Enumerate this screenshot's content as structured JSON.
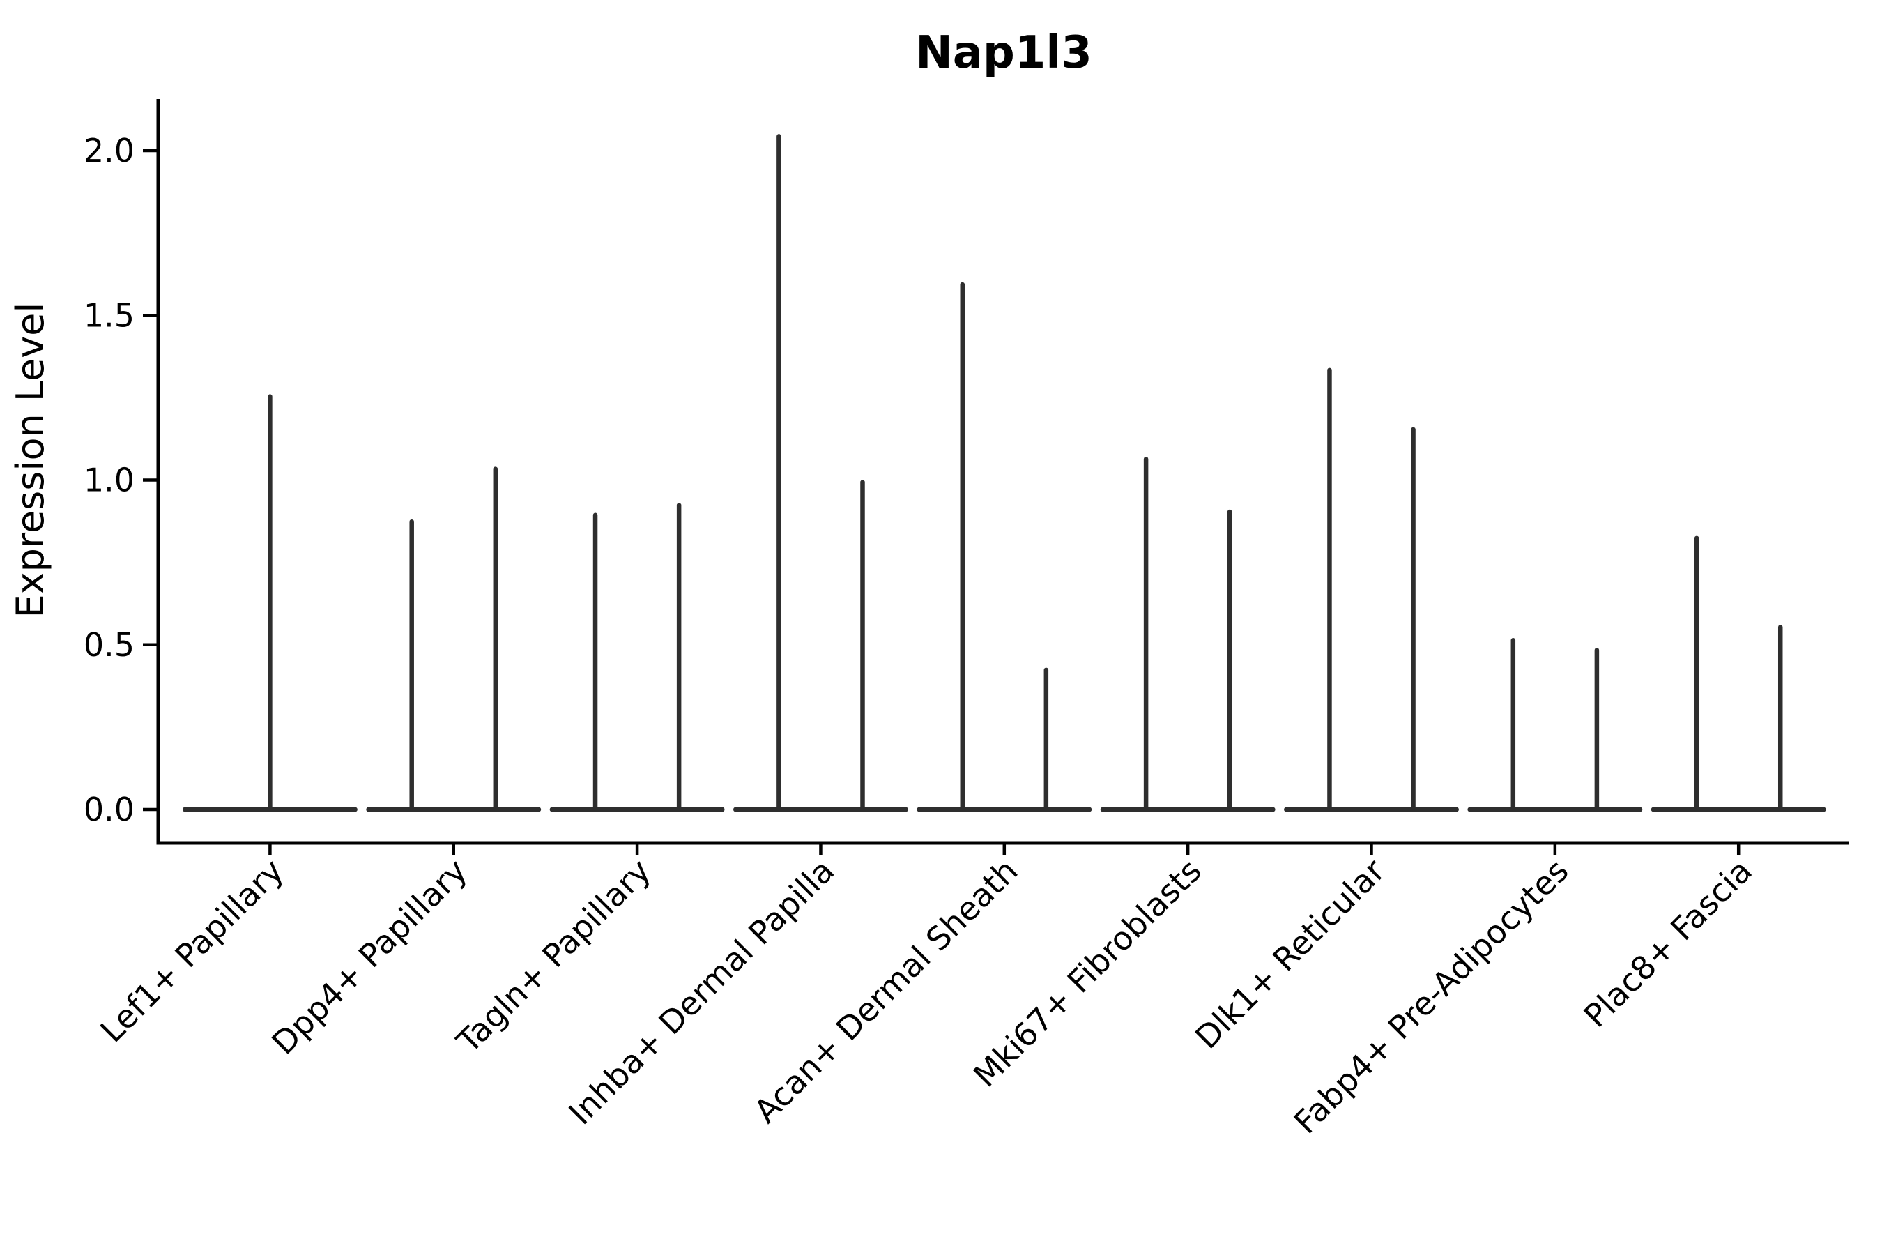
{
  "title": "Nap1l3",
  "y_axis": {
    "label": "Expression Level",
    "tick_labels": [
      "0.0",
      "0.5",
      "1.0",
      "1.5",
      "2.0"
    ]
  },
  "chart_data": {
    "type": "violin",
    "title": "Nap1l3",
    "xlabel": "",
    "ylabel": "Expression Level",
    "ylim": [
      0,
      2.16
    ],
    "yticks": [
      0.0,
      0.5,
      1.0,
      1.5,
      2.0
    ],
    "grid": false,
    "legend": null,
    "background": "#ffffff",
    "axis_color": "#000000",
    "violin_color": "#2e2e2e",
    "categories": [
      "Lef1+ Papillary",
      "Dpp4+ Papillary",
      "Tagln+ Papillary",
      "Inhba+ Dermal Papilla",
      "Acan+ Dermal Sheath",
      "Mki67+ Fibroblasts",
      "Dlk1+ Reticular",
      "Fabp4+ Pre-Adipocytes",
      "Plac8+ Fascia"
    ],
    "violins": [
      {
        "category": "Lef1+ Papillary",
        "baseline_halfwidth_frac": 0.463,
        "spikes": [
          {
            "x_offset_frac": 0.0,
            "max_expression": 1.26
          }
        ]
      },
      {
        "category": "Dpp4+ Papillary",
        "baseline_halfwidth_frac": 0.463,
        "spikes": [
          {
            "x_offset_frac": -0.228,
            "max_expression": 0.88
          },
          {
            "x_offset_frac": 0.228,
            "max_expression": 1.04
          }
        ]
      },
      {
        "category": "Tagln+ Papillary",
        "baseline_halfwidth_frac": 0.463,
        "spikes": [
          {
            "x_offset_frac": -0.228,
            "max_expression": 0.9
          },
          {
            "x_offset_frac": 0.228,
            "max_expression": 0.93
          }
        ]
      },
      {
        "category": "Inhba+ Dermal Papilla",
        "baseline_halfwidth_frac": 0.463,
        "spikes": [
          {
            "x_offset_frac": -0.228,
            "max_expression": 2.05
          },
          {
            "x_offset_frac": 0.228,
            "max_expression": 1.0
          }
        ]
      },
      {
        "category": "Acan+ Dermal Sheath",
        "baseline_halfwidth_frac": 0.463,
        "spikes": [
          {
            "x_offset_frac": -0.228,
            "max_expression": 1.6
          },
          {
            "x_offset_frac": 0.228,
            "max_expression": 0.43
          }
        ]
      },
      {
        "category": "Mki67+ Fibroblasts",
        "baseline_halfwidth_frac": 0.463,
        "spikes": [
          {
            "x_offset_frac": -0.228,
            "max_expression": 1.07
          },
          {
            "x_offset_frac": 0.228,
            "max_expression": 0.91
          }
        ]
      },
      {
        "category": "Dlk1+ Reticular",
        "baseline_halfwidth_frac": 0.463,
        "spikes": [
          {
            "x_offset_frac": -0.228,
            "max_expression": 1.34
          },
          {
            "x_offset_frac": 0.228,
            "max_expression": 1.16
          }
        ]
      },
      {
        "category": "Fabp4+ Pre-Adipocytes",
        "baseline_halfwidth_frac": 0.463,
        "spikes": [
          {
            "x_offset_frac": -0.228,
            "max_expression": 0.52
          },
          {
            "x_offset_frac": 0.228,
            "max_expression": 0.49
          }
        ]
      },
      {
        "category": "Plac8+ Fascia",
        "baseline_halfwidth_frac": 0.463,
        "spikes": [
          {
            "x_offset_frac": -0.228,
            "max_expression": 0.83
          },
          {
            "x_offset_frac": 0.228,
            "max_expression": 0.56
          }
        ]
      }
    ]
  }
}
